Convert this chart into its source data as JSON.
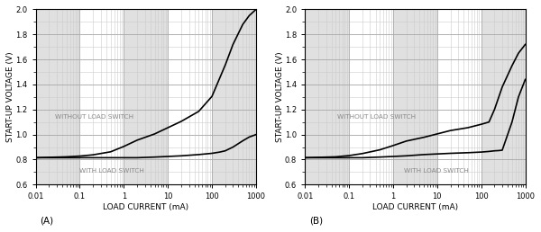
{
  "ylabel": "START-UP VOLTAGE (V)",
  "xlabel": "LOAD CURRENT (mA)",
  "ylim": [
    0.6,
    2.0
  ],
  "xlim_min": 0.01,
  "xlim_max": 1000,
  "yticks": [
    0.6,
    0.8,
    1.0,
    1.2,
    1.4,
    1.6,
    1.8,
    2.0
  ],
  "label_A": "(A)",
  "label_B": "(B)",
  "text_without": "WITHOUT LOAD SWITCH",
  "text_with": "WITH LOAD SWITCH",
  "bg_color": "#f5f5f5",
  "band_light": "#ffffff",
  "band_dark": "#e0e0e0",
  "line_color": "#000000",
  "text_color": "#888888",
  "grid_major_color": "#aaaaaa",
  "grid_minor_color": "#cccccc",
  "fig_bg": "#ffffff",
  "outer_border": "#999999",
  "A_without_x": [
    0.01,
    0.02,
    0.05,
    0.1,
    0.2,
    0.5,
    1.0,
    2.0,
    5.0,
    10.0,
    20.0,
    50.0,
    100.0,
    200.0,
    300.0,
    500.0,
    700.0,
    1000.0
  ],
  "A_without_y": [
    0.815,
    0.818,
    0.822,
    0.828,
    0.838,
    0.862,
    0.905,
    0.955,
    1.005,
    1.055,
    1.105,
    1.185,
    1.305,
    1.555,
    1.72,
    1.88,
    1.95,
    2.0
  ],
  "A_with_x": [
    0.01,
    0.02,
    0.05,
    0.1,
    0.2,
    0.5,
    1.0,
    2.0,
    5.0,
    10.0,
    20.0,
    50.0,
    100.0,
    150.0,
    200.0,
    300.0,
    500.0,
    700.0,
    1000.0
  ],
  "A_with_y": [
    0.815,
    0.815,
    0.815,
    0.815,
    0.815,
    0.815,
    0.815,
    0.815,
    0.82,
    0.825,
    0.83,
    0.84,
    0.85,
    0.86,
    0.87,
    0.9,
    0.95,
    0.98,
    1.0
  ],
  "B_without_x": [
    0.01,
    0.02,
    0.05,
    0.1,
    0.2,
    0.5,
    1.0,
    2.0,
    5.0,
    10.0,
    20.0,
    50.0,
    100.0,
    150.0,
    200.0,
    300.0,
    500.0,
    700.0,
    1000.0
  ],
  "B_without_y": [
    0.815,
    0.818,
    0.822,
    0.832,
    0.848,
    0.878,
    0.912,
    0.948,
    0.978,
    1.005,
    1.032,
    1.055,
    1.082,
    1.1,
    1.2,
    1.38,
    1.55,
    1.65,
    1.72
  ],
  "B_with_x": [
    0.01,
    0.02,
    0.05,
    0.1,
    0.2,
    0.5,
    1.0,
    2.0,
    5.0,
    10.0,
    20.0,
    50.0,
    100.0,
    150.0,
    200.0,
    250.0,
    300.0,
    500.0,
    700.0,
    1000.0
  ],
  "B_with_y": [
    0.815,
    0.815,
    0.815,
    0.815,
    0.815,
    0.82,
    0.825,
    0.83,
    0.84,
    0.845,
    0.85,
    0.855,
    0.86,
    0.865,
    0.87,
    0.872,
    0.875,
    1.1,
    1.3,
    1.44
  ]
}
